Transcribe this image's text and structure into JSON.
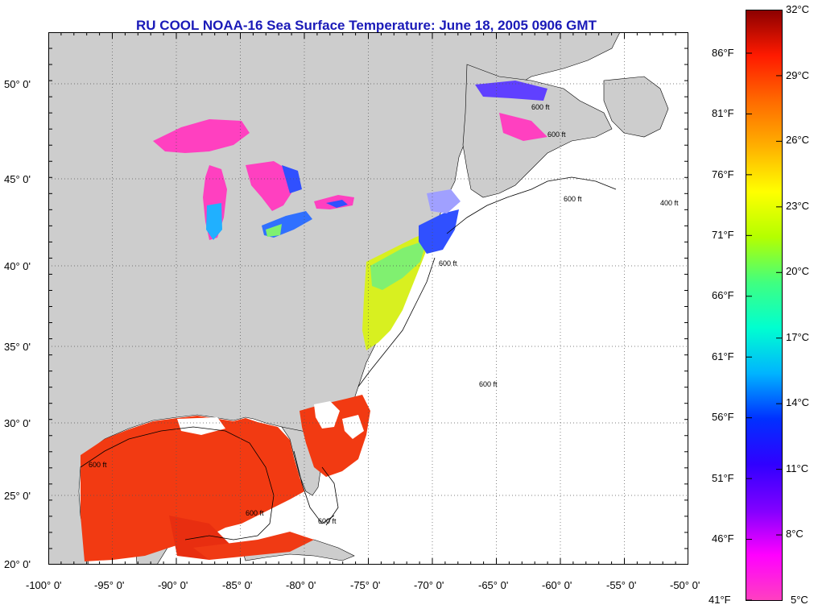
{
  "title": "RU COOL  NOAA-16  Sea Surface Temperature:  June 18, 2005 0906 GMT",
  "map": {
    "lat_labels": [
      "50° 0'",
      "45° 0'",
      "40° 0'",
      "35° 0'",
      "30° 0'",
      "25° 0'",
      "20° 0'"
    ],
    "lon_labels": [
      "-100° 0'",
      "-95° 0'",
      "-90° 0'",
      "-85° 0'",
      "-80° 0'",
      "-75° 0'",
      "-70° 0'",
      "-65° 0'",
      "-60° 0'",
      "-55° 0'",
      "-50° 0'"
    ],
    "contour_labels": [
      "600 ft",
      "600 ft",
      "600 ft",
      "600 ft",
      "600 ft",
      "600 ft",
      "600 ft",
      "600 ft",
      "400 ft"
    ],
    "land_color": "#cdcdcd",
    "ocean_nodata_color": "#ffffff"
  },
  "colorbar": {
    "fahrenheit_labels": [
      "86°F",
      "81°F",
      "76°F",
      "71°F",
      "66°F",
      "61°F",
      "56°F",
      "51°F",
      "46°F",
      "41°F"
    ],
    "celsius_labels": [
      "32°C",
      "29°C",
      "26°C",
      "23°C",
      "20°C",
      "17°C",
      "14°C",
      "11°C",
      "8°C",
      "5°C"
    ],
    "colors_top_to_bottom": [
      "#8b0000",
      "#ff1a00",
      "#ff6a00",
      "#ffb000",
      "#ffff00",
      "#b4ff00",
      "#40ff80",
      "#00ffd0",
      "#00b4ff",
      "#0030ff",
      "#3000ff",
      "#8000ff",
      "#ff00ff",
      "#ff40c0"
    ]
  }
}
